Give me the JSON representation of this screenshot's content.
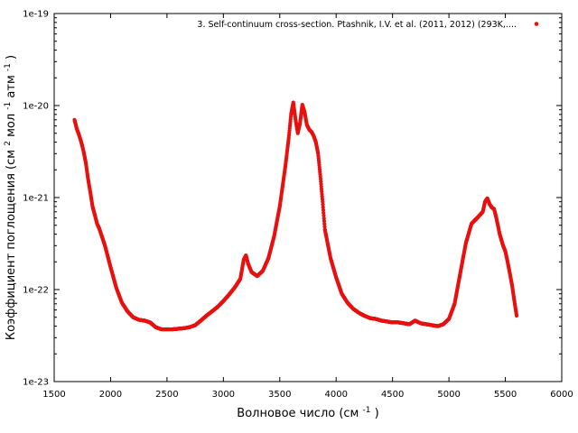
{
  "chart_data": {
    "type": "scatter",
    "xlabel": {
      "text": "Волновое число (см",
      "sup": "-1",
      "tail": ")"
    },
    "ylabel": {
      "parts": [
        "Коэффициент поглощения (см",
        "мол",
        "атм",
        ")"
      ],
      "sups": [
        "2",
        "-1",
        "-1"
      ]
    },
    "xlim": [
      1500,
      6000
    ],
    "ylim": [
      1e-23,
      1e-19
    ],
    "yscale": "log",
    "x_ticks": [
      "1500",
      "2000",
      "2500",
      "3000",
      "3500",
      "4000",
      "4500",
      "5000",
      "5500",
      "6000"
    ],
    "y_ticks": [
      "1e-23",
      "1e-22",
      "1e-21",
      "1e-20",
      "1e-19"
    ],
    "grid": false,
    "legend_position": "top-right",
    "series": [
      {
        "name": "3. Self-continuum cross-section. Ptashnik, I.V. et al. (2011, 2012) (293K,....",
        "color": "#e8110f",
        "x": [
          1680,
          1700,
          1720,
          1740,
          1760,
          1780,
          1800,
          1820,
          1840,
          1860,
          1880,
          1900,
          1950,
          2000,
          2050,
          2100,
          2150,
          2200,
          2250,
          2300,
          2350,
          2400,
          2450,
          2500,
          2550,
          2600,
          2650,
          2700,
          2750,
          2800,
          2850,
          2900,
          2950,
          3000,
          3050,
          3100,
          3150,
          3180,
          3200,
          3220,
          3250,
          3300,
          3350,
          3400,
          3450,
          3500,
          3550,
          3580,
          3600,
          3620,
          3640,
          3660,
          3680,
          3700,
          3720,
          3740,
          3760,
          3780,
          3800,
          3820,
          3840,
          3860,
          3880,
          3900,
          3950,
          4000,
          4050,
          4100,
          4150,
          4200,
          4250,
          4300,
          4350,
          4400,
          4450,
          4500,
          4550,
          4600,
          4650,
          4700,
          4750,
          4800,
          4850,
          4900,
          4950,
          5000,
          5050,
          5100,
          5150,
          5200,
          5250,
          5300,
          5320,
          5340,
          5360,
          5380,
          5400,
          5420,
          5450,
          5480,
          5500,
          5520,
          5540,
          5560,
          5580,
          5600
        ],
        "y": [
          7e-21,
          5.6e-21,
          4.8e-21,
          4e-21,
          3.2e-21,
          2.4e-21,
          1.6e-21,
          1.15e-21,
          8e-22,
          6.5e-22,
          5.2e-22,
          4.6e-22,
          3e-22,
          1.75e-22,
          1.05e-22,
          7.2e-23,
          5.8e-23,
          5e-23,
          4.7e-23,
          4.6e-23,
          4.4e-23,
          3.9e-23,
          3.7e-23,
          3.7e-23,
          3.7e-23,
          3.75e-23,
          3.8e-23,
          3.9e-23,
          4.1e-23,
          4.6e-23,
          5.2e-23,
          5.8e-23,
          6.5e-23,
          7.5e-23,
          8.8e-23,
          1.05e-22,
          1.3e-22,
          2.1e-22,
          2.35e-22,
          1.9e-22,
          1.55e-22,
          1.4e-22,
          1.6e-22,
          2.2e-22,
          3.8e-22,
          8e-22,
          2.2e-21,
          4.5e-21,
          8e-21,
          1.08e-20,
          7e-21,
          5e-21,
          6.5e-21,
          1.02e-20,
          8.5e-21,
          6.2e-21,
          5.5e-21,
          5.2e-21,
          4.7e-21,
          4e-21,
          3e-21,
          1.7e-21,
          9e-22,
          4.5e-22,
          2.2e-22,
          1.35e-22,
          9e-23,
          7.2e-23,
          6.2e-23,
          5.6e-23,
          5.2e-23,
          4.9e-23,
          4.8e-23,
          4.6e-23,
          4.5e-23,
          4.4e-23,
          4.4e-23,
          4.3e-23,
          4.2e-23,
          4.6e-23,
          4.3e-23,
          4.2e-23,
          4.1e-23,
          4e-23,
          4.2e-23,
          4.8e-23,
          7e-23,
          1.5e-22,
          3.2e-22,
          5.2e-22,
          6e-22,
          7e-22,
          9e-22,
          9.8e-22,
          8.5e-22,
          7.8e-22,
          7.5e-22,
          6e-22,
          4e-22,
          3e-22,
          2.6e-22,
          2e-22,
          1.5e-22,
          1.1e-22,
          7.5e-23,
          5.2e-23
        ]
      }
    ]
  }
}
